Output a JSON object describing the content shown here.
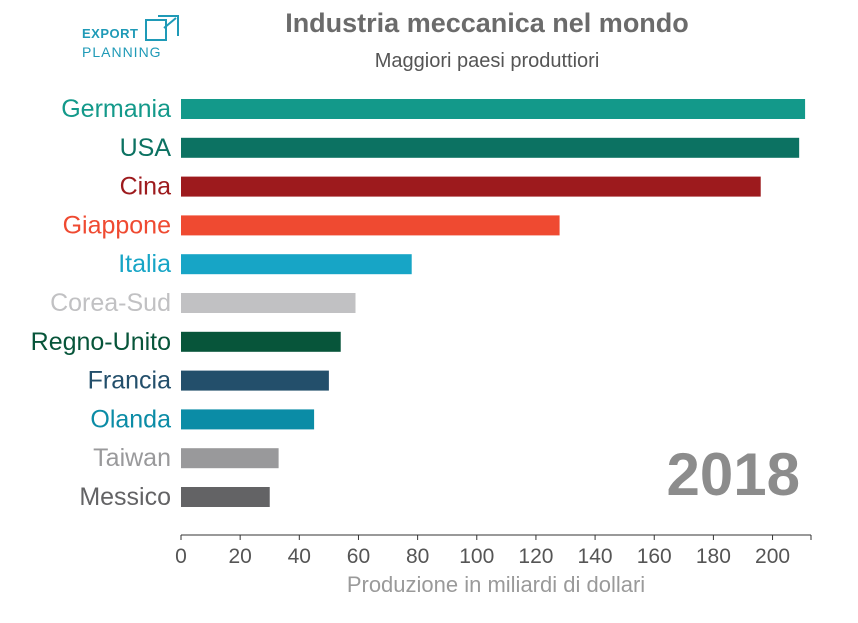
{
  "logo": {
    "line1": "EXPORT",
    "line2": "PLANNING"
  },
  "chart_data": {
    "type": "bar",
    "orientation": "horizontal",
    "title": "Industria meccanica nel mondo",
    "subtitle": "Maggiori paesi produttiori",
    "xlabel": "Produzione in miliardi di dollari",
    "ylabel": "",
    "xlim": [
      0,
      213
    ],
    "xticks": [
      0,
      20,
      40,
      60,
      80,
      100,
      120,
      140,
      160,
      180,
      200
    ],
    "annotation": "2018",
    "categories": [
      "Germania",
      "USA",
      "Cina",
      "Giappone",
      "Italia",
      "Corea-Sud",
      "Regno-Unito",
      "Francia",
      "Olanda",
      "Taiwan",
      "Messico"
    ],
    "values": [
      211,
      209,
      196,
      128,
      78,
      59,
      54,
      50,
      45,
      33,
      30
    ],
    "colors": [
      "#13998a",
      "#0c7262",
      "#9d1a1d",
      "#ef4a31",
      "#17a5c6",
      "#c1c1c3",
      "#07553a",
      "#234f6b",
      "#0b8ca6",
      "#99999b",
      "#636365"
    ],
    "grid": false
  }
}
